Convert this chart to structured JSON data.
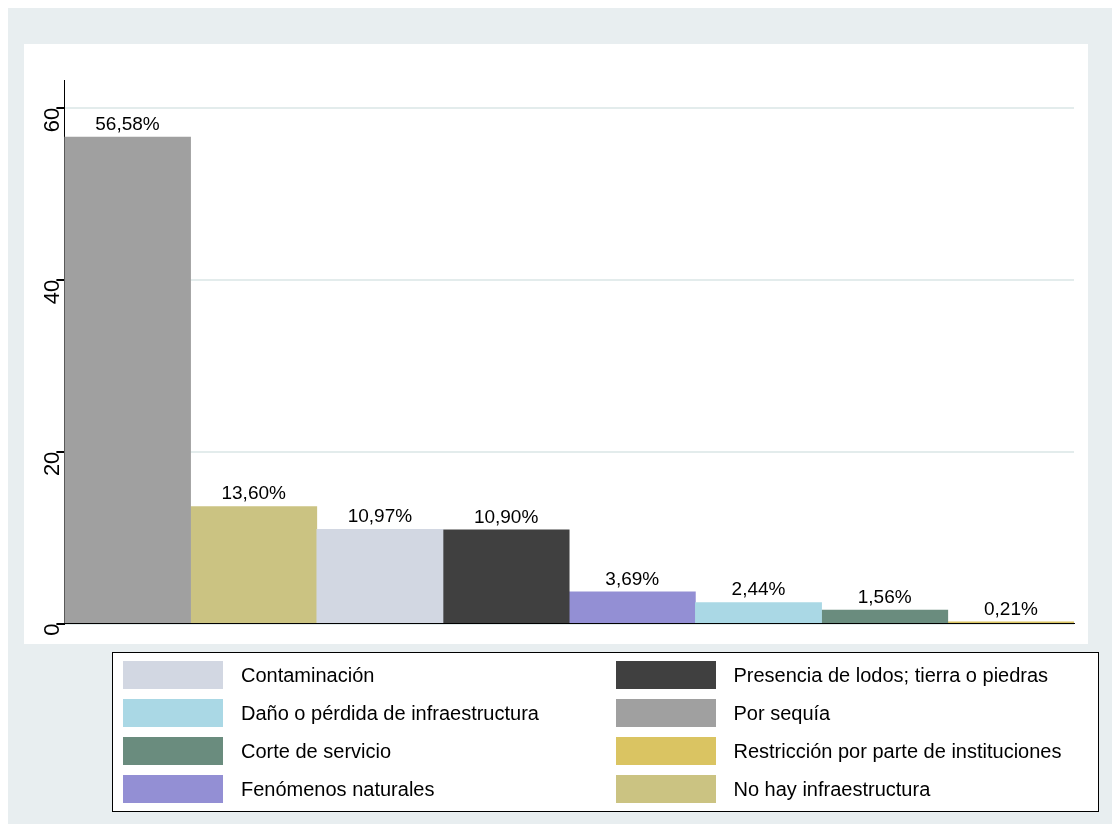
{
  "chart_data": {
    "type": "bar",
    "categories": [
      null,
      null,
      null,
      null,
      null,
      null,
      null,
      null
    ],
    "ylim": [
      0,
      63.2
    ],
    "yticks": [
      0,
      20,
      40,
      60
    ],
    "grid": "y",
    "legend": "bottom",
    "series": [
      {
        "name": "Contaminación",
        "color": "#d2d7e2",
        "values": [
          null,
          null,
          10.97,
          null,
          null,
          null,
          null,
          null
        ],
        "value_labels": [
          null,
          null,
          "10,97%",
          null,
          null,
          null,
          null,
          null
        ]
      },
      {
        "name": "Presencia de lodos; tierra o piedras",
        "color": "#404040",
        "values": [
          null,
          null,
          null,
          10.9,
          null,
          null,
          null,
          null
        ],
        "value_labels": [
          null,
          null,
          null,
          "10,90%",
          null,
          null,
          null,
          null
        ]
      },
      {
        "name": "Daño o pérdida de infraestructura",
        "color": "#aad8e5",
        "values": [
          null,
          null,
          null,
          null,
          null,
          2.44,
          null,
          null
        ],
        "value_labels": [
          null,
          null,
          null,
          null,
          null,
          "2,44%",
          null,
          null
        ]
      },
      {
        "name": "Por sequía",
        "color": "#a0a0a0",
        "values": [
          56.58,
          null,
          null,
          null,
          null,
          null,
          null,
          null
        ],
        "value_labels": [
          "56,58%",
          null,
          null,
          null,
          null,
          null,
          null,
          null
        ]
      },
      {
        "name": "Corte de servicio",
        "color": "#6a8c7e",
        "values": [
          null,
          null,
          null,
          null,
          null,
          null,
          1.56,
          null
        ],
        "value_labels": [
          null,
          null,
          null,
          null,
          null,
          null,
          "1,56%",
          null
        ]
      },
      {
        "name": "Restricción por parte de instituciones",
        "color": "#dac462",
        "values": [
          null,
          null,
          null,
          null,
          null,
          null,
          null,
          0.21
        ],
        "value_labels": [
          null,
          null,
          null,
          null,
          null,
          null,
          null,
          "0,21%"
        ]
      },
      {
        "name": "Fenómenos naturales",
        "color": "#938fd4",
        "values": [
          null,
          null,
          null,
          null,
          3.69,
          null,
          null,
          null
        ],
        "value_labels": [
          null,
          null,
          null,
          null,
          "3,69%",
          null,
          null,
          null
        ]
      },
      {
        "name": "No hay infraestructura",
        "color": "#cbc382",
        "values": [
          null,
          13.6,
          null,
          null,
          null,
          null,
          null,
          null
        ],
        "value_labels": [
          null,
          "13,60%",
          null,
          null,
          null,
          null,
          null,
          null
        ]
      }
    ]
  }
}
